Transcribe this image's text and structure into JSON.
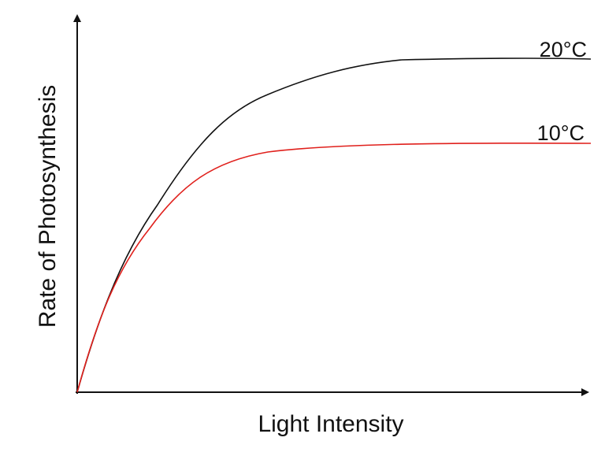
{
  "axes": {
    "x_label": "Light Intensity",
    "y_label": "Rate of Photosynthesis"
  },
  "curves": [
    {
      "label": "20°C"
    },
    {
      "label": "10°C"
    }
  ]
}
